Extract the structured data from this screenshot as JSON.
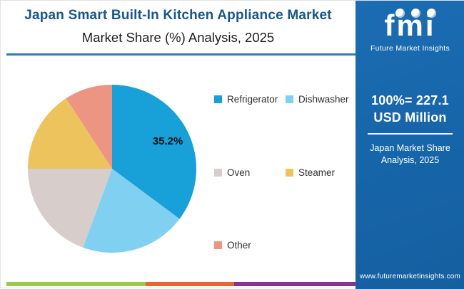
{
  "header": {
    "title": "Japan Smart Built-In Kitchen Appliance Market",
    "subtitle": "Market Share (%) Analysis, 2025"
  },
  "chart_data": {
    "type": "pie",
    "title": "Japan Smart Built-In Kitchen Appliance Market Share (%), 2025",
    "categories": [
      "Refrigerator",
      "Dishwasher",
      "Oven",
      "Steamer",
      "Other"
    ],
    "values": [
      35.2,
      20.4,
      19.4,
      15.8,
      9.2
    ],
    "colors": [
      "#18a0d9",
      "#7fd0f1",
      "#d7cecb",
      "#ecc35c",
      "#ec9583"
    ],
    "labeled_slice": {
      "index": 0,
      "label": "35.2%"
    },
    "start_angle_deg": 0,
    "direction": "clockwise",
    "legend_position": "right",
    "annotations": [
      "35.2%"
    ]
  },
  "sidebar": {
    "bg_color": "#1766ab",
    "logo": {
      "wordmark": "fmi",
      "caption": "Future Market Insights"
    },
    "market_size": {
      "line1": "100%= 227.1",
      "line2": "USD Million"
    },
    "caption": {
      "line1": "Japan Market Share",
      "line2": "Analysis, 2025"
    },
    "website": "www.futuremarketinsights.com"
  },
  "footer": {
    "strip_colors": [
      "#9bc84e",
      "#e96433",
      "#8c2f94"
    ]
  },
  "colors": {
    "title_blue": "#17568c",
    "underline_blue": "#2b7cb5",
    "pie_label_color": "#121212"
  }
}
